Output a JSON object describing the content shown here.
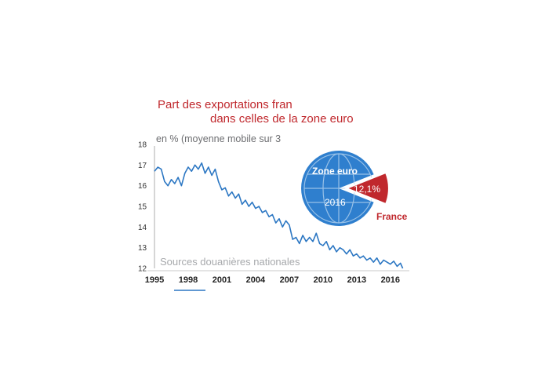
{
  "chart_data": [
    {
      "type": "line",
      "title_line1": "Part des exportations fran",
      "title_line2": "dans celles de la zone euro",
      "subtitle": "en % (moyenne mobile sur 3",
      "source": "Sources douanières nationales",
      "ylim": [
        12,
        18
      ],
      "yticks": [
        "18",
        "17",
        "16",
        "15",
        "14",
        "13",
        "12"
      ],
      "xlim": [
        1995,
        2017.2
      ],
      "xticks": [
        "1995",
        "1998",
        "2001",
        "2004",
        "2007",
        "2010",
        "2013",
        "2016"
      ],
      "grid": false,
      "line_color": "#2c77c3",
      "series": [
        {
          "x": [
            1995.0,
            1995.3,
            1995.6,
            1995.9,
            1996.2,
            1996.5,
            1996.8,
            1997.1,
            1997.4,
            1997.7,
            1998.0,
            1998.3,
            1998.6,
            1998.9,
            1999.2,
            1999.5,
            1999.8,
            2000.1,
            2000.4,
            2000.7,
            2001.0,
            2001.3,
            2001.6,
            2001.9,
            2002.2,
            2002.5,
            2002.8,
            2003.1,
            2003.4,
            2003.7,
            2004.0,
            2004.3,
            2004.6,
            2004.9,
            2005.2,
            2005.5,
            2005.8,
            2006.1,
            2006.4,
            2006.7,
            2007.0,
            2007.3,
            2007.6,
            2007.9,
            2008.2,
            2008.5,
            2008.8,
            2009.1,
            2009.4,
            2009.7,
            2010.0,
            2010.3,
            2010.6,
            2010.9,
            2011.2,
            2011.5,
            2011.8,
            2012.1,
            2012.4,
            2012.7,
            2013.0,
            2013.3,
            2013.6,
            2013.9,
            2014.2,
            2014.5,
            2014.8,
            2015.1,
            2015.4,
            2015.7,
            2016.0,
            2016.3,
            2016.6,
            2016.9,
            2017.1
          ],
          "y": [
            16.7,
            16.9,
            16.8,
            16.2,
            16.0,
            16.3,
            16.1,
            16.4,
            16.0,
            16.6,
            16.9,
            16.7,
            17.0,
            16.8,
            17.1,
            16.6,
            16.9,
            16.5,
            16.8,
            16.2,
            15.8,
            15.9,
            15.5,
            15.7,
            15.4,
            15.6,
            15.1,
            15.3,
            15.0,
            15.2,
            14.9,
            15.0,
            14.7,
            14.8,
            14.5,
            14.6,
            14.2,
            14.4,
            14.0,
            14.3,
            14.1,
            13.4,
            13.5,
            13.2,
            13.6,
            13.3,
            13.5,
            13.3,
            13.7,
            13.2,
            13.1,
            13.3,
            12.9,
            13.1,
            12.8,
            13.0,
            12.9,
            12.7,
            12.9,
            12.6,
            12.7,
            12.5,
            12.6,
            12.4,
            12.5,
            12.3,
            12.5,
            12.2,
            12.4,
            12.3,
            12.2,
            12.35,
            12.1,
            12.25,
            12.0
          ]
        }
      ]
    },
    {
      "type": "pie",
      "title": "Zone euro",
      "year": "2016",
      "slices": [
        {
          "label": "France",
          "value": 12.1,
          "value_label": "12,1%",
          "color": "#c0282d"
        },
        {
          "label": "Zone euro",
          "value": 87.9,
          "color": "#2f7fce"
        }
      ]
    }
  ]
}
